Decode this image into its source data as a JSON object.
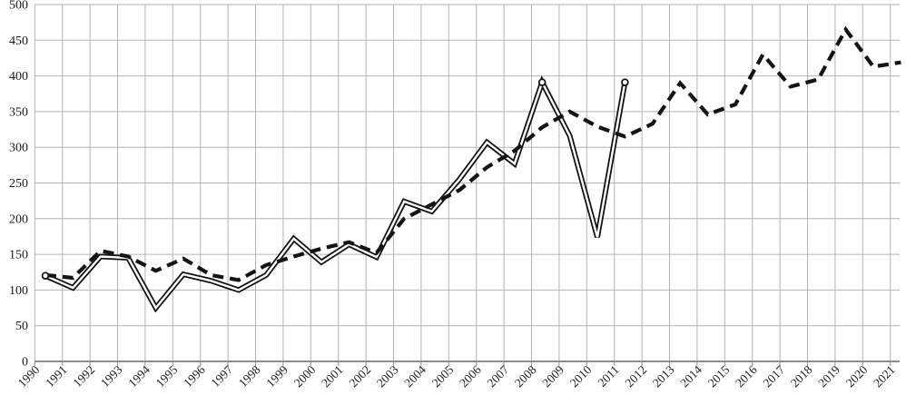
{
  "chart_data": {
    "type": "line",
    "title": "",
    "xlabel": "",
    "ylabel": "",
    "x_categories": [
      "1990",
      "1991",
      "1992",
      "1993",
      "1994",
      "1995",
      "1996",
      "1997",
      "1998",
      "1999",
      "2000",
      "2001",
      "2002",
      "2003",
      "2004",
      "2005",
      "2006",
      "2007",
      "2008",
      "2009",
      "2010",
      "2011",
      "2012",
      "2013",
      "2014",
      "2015",
      "2016",
      "2017",
      "2018",
      "2019",
      "2020",
      "2021"
    ],
    "y_ticks": [
      0,
      50,
      100,
      150,
      200,
      250,
      300,
      350,
      400,
      450,
      500
    ],
    "ylim": [
      0,
      500
    ],
    "grid": true,
    "legend_position": "none",
    "series": [
      {
        "name": "solid-double-line-series",
        "line_style": "double-solid",
        "color": "#141414",
        "marker_years": [
          "1990",
          "2008",
          "2011"
        ],
        "values": [
          120,
          103,
          147,
          145,
          75,
          122,
          113,
          100,
          121,
          172,
          139,
          164,
          146,
          224,
          210,
          255,
          307,
          277,
          391,
          316,
          174,
          391
        ]
      },
      {
        "name": "bold-dashed-line-series",
        "line_style": "dashed",
        "color": "#141414",
        "marker_years": [],
        "values": [
          121,
          117,
          155,
          147,
          127,
          144,
          121,
          114,
          135,
          147,
          158,
          167,
          152,
          200,
          220,
          240,
          272,
          295,
          328,
          350,
          329,
          315,
          333,
          390,
          346,
          360,
          430,
          385,
          395,
          465,
          413,
          419
        ]
      }
    ]
  },
  "colors": {
    "background": "#ffffff",
    "gridline": "#b3b3b3",
    "axis_line": "#8c8c8c",
    "tick_text": "#1a1a1a",
    "series_stroke": "#141414",
    "double_line_core": "#ffffff"
  }
}
